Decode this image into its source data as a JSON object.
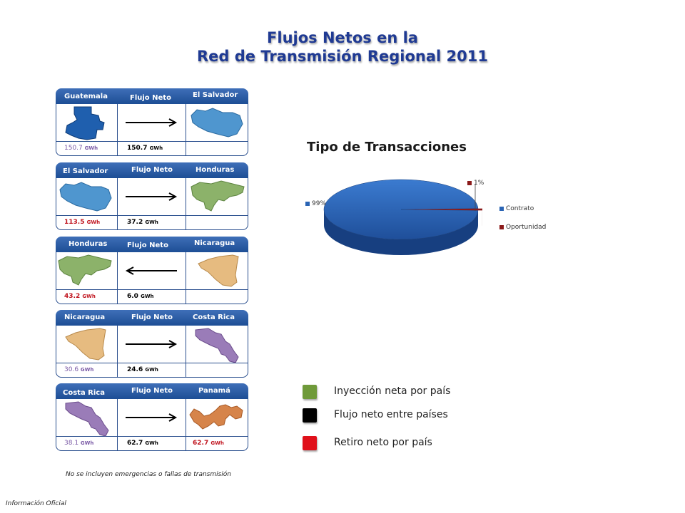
{
  "title": {
    "line1": "Flujos Netos en la",
    "line2": "Red de Transmisión Regional 2011"
  },
  "colors": {
    "header": "#1d4e95",
    "guatemala": "#1f5fae",
    "el_salvador": "#4f96cf",
    "honduras": "#8cb26a",
    "nicaragua": "#e6bb80",
    "costa_rica": "#9a7cb8",
    "panama": "#d6844a",
    "inyeccion": "#6f9a3a",
    "flujo": "#000000",
    "retiro": "#e0101a"
  },
  "panels": [
    {
      "from": "Guatemala",
      "flow_label": "Flujo Neto",
      "to": "El Salvador",
      "from_value": "150.7",
      "flow_value": "150.7",
      "to_value": "",
      "unit": "GWh",
      "direction": "right"
    },
    {
      "from": "El Salvador",
      "flow_label": "Flujo Neto",
      "to": "Honduras",
      "from_value": "113.5",
      "flow_value": "37.2",
      "to_value": "",
      "unit": "GWh",
      "direction": "right"
    },
    {
      "from": "Honduras",
      "flow_label": "Flujo Neto",
      "to": "Nicaragua",
      "from_value": "43.2",
      "flow_value": "6.0",
      "to_value": "",
      "unit": "GWh",
      "direction": "left"
    },
    {
      "from": "Nicaragua",
      "flow_label": "Flujo Neto",
      "to": "Costa Rica",
      "from_value": "30.6",
      "flow_value": "24.6",
      "to_value": "",
      "unit": "GWh",
      "direction": "right"
    },
    {
      "from": "Costa Rica",
      "flow_label": "Flujo Neto",
      "to": "Panamá",
      "from_value": "38.1",
      "flow_value": "62.7",
      "to_value": "62.7",
      "unit": "GWh",
      "direction": "right"
    }
  ],
  "chart_data": {
    "type": "pie",
    "title": "Tipo de Transacciones",
    "categories": [
      "Contrato",
      "Oportunidad"
    ],
    "values": [
      99,
      1
    ],
    "data_labels": [
      "99%",
      "1%"
    ],
    "colors": [
      "#2a64b4",
      "#8b1a1a"
    ],
    "legend": "right"
  },
  "key": [
    {
      "label": "Inyección neta por país",
      "color": "#6f9a3a"
    },
    {
      "label": "Flujo neto entre países",
      "color": "#000000"
    },
    {
      "label": "Retiro neto por país",
      "color": "#e0101a"
    }
  ],
  "note": "No se incluyen emergencias o fallas de transmisión",
  "footer": "Información Oficial"
}
